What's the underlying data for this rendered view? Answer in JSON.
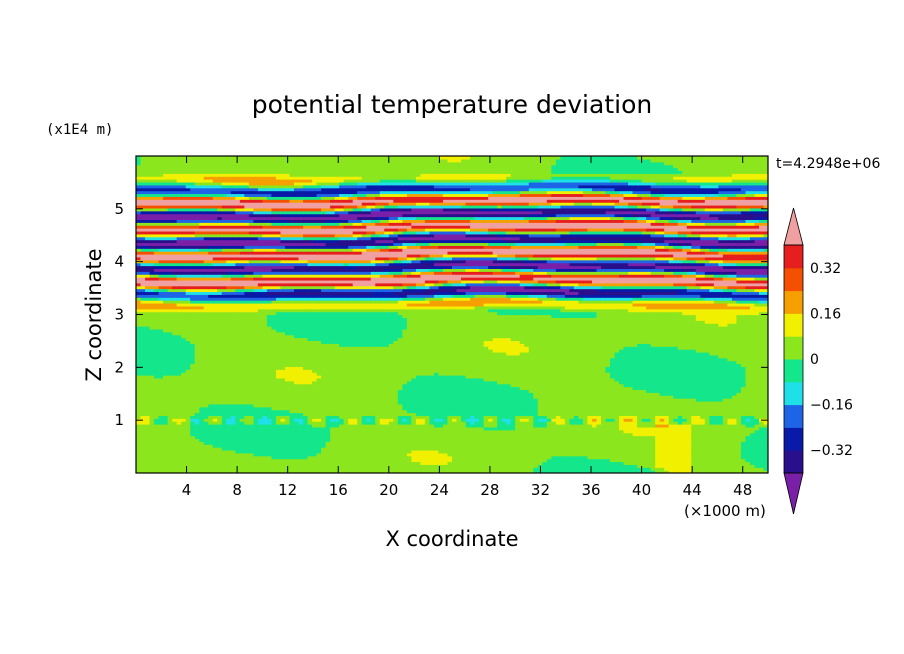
{
  "chart_data": {
    "type": "heatmap",
    "title": "potential temperature deviation",
    "xlabel": "X coordinate",
    "ylabel": "Z coordinate",
    "x_unit": "(×1000 m)",
    "y_unit": "(x1E4 m)",
    "time_label": "t=4.2948e+06",
    "xlim": [
      0,
      50
    ],
    "ylim": [
      0,
      6
    ],
    "x_ticks": [
      4,
      8,
      12,
      16,
      20,
      24,
      28,
      32,
      36,
      40,
      44,
      48
    ],
    "y_ticks": [
      1,
      2,
      3,
      4,
      5
    ],
    "colorbar": {
      "levels": [
        -0.4,
        -0.32,
        -0.24,
        -0.16,
        -0.08,
        0,
        0.08,
        0.16,
        0.24,
        0.32,
        0.4
      ],
      "tick_labels": [
        "0.32",
        "0.16",
        "0",
        "−0.16",
        "−0.32"
      ],
      "tick_values": [
        0.32,
        0.16,
        0,
        -0.16,
        -0.32
      ],
      "colors": {
        "under": "#7a1fa8",
        "bins": [
          "#2a0f8c",
          "#0a1aa8",
          "#1e64e6",
          "#1fe0e6",
          "#14e68c",
          "#8ce61e",
          "#f0f000",
          "#f5a000",
          "#f55000",
          "#e61e1e"
        ],
        "over": "#f0a0a0"
      },
      "extend": "both"
    },
    "field_description_values": {
      "background_level": 0.02,
      "active_layer_z_range": [
        3.3,
        5.4
      ],
      "band_amplitude": 0.45,
      "lower_disturbance_z": 1.0
    }
  }
}
